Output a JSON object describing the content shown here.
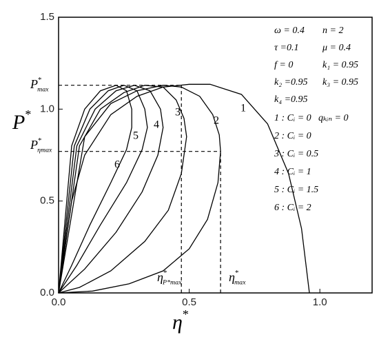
{
  "chart_data": {
    "type": "line",
    "x_label": {
      "base": "η",
      "sup": "*"
    },
    "y_label": {
      "base": "P",
      "sup": "*"
    },
    "xlim": [
      0,
      1.2
    ],
    "ylim": [
      0,
      1.5
    ],
    "xticks": [
      {
        "value": 0,
        "label": "0.0"
      },
      {
        "value": 0.5,
        "label": "0.5"
      },
      {
        "value": 1.0,
        "label": "1.0"
      }
    ],
    "yticks": [
      {
        "value": 0,
        "label": "0.0"
      },
      {
        "value": 0.5,
        "label": "0.5"
      },
      {
        "value": 1.0,
        "label": "1.0"
      },
      {
        "value": 1.5,
        "label": "1.5"
      }
    ],
    "series": [
      {
        "name": "1",
        "color": "#000000",
        "x": [
          0,
          0.05,
          0.1,
          0.2,
          0.3,
          0.4,
          0.5,
          0.58,
          0.7,
          0.8,
          0.88,
          0.93,
          0.96
        ],
        "values": [
          0,
          0.5,
          0.75,
          0.97,
          1.07,
          1.12,
          1.135,
          1.135,
          1.08,
          0.92,
          0.65,
          0.35,
          0
        ]
      },
      {
        "name": "2",
        "color": "#000000",
        "x": [
          0,
          0.1,
          0.2,
          0.3,
          0.4,
          0.47,
          0.54,
          0.59,
          0.615,
          0.62,
          0.61,
          0.57,
          0.5,
          0.4,
          0.27,
          0.13,
          0
        ],
        "values": [
          0,
          0.85,
          1.03,
          1.1,
          1.13,
          1.12,
          1.07,
          0.97,
          0.86,
          0.77,
          0.6,
          0.4,
          0.24,
          0.12,
          0.05,
          0.01,
          0
        ]
      },
      {
        "name": "3",
        "color": "#000000",
        "x": [
          0,
          0.08,
          0.16,
          0.25,
          0.33,
          0.4,
          0.45,
          0.48,
          0.49,
          0.47,
          0.42,
          0.33,
          0.2,
          0.08,
          0
        ],
        "values": [
          0,
          0.8,
          1.0,
          1.09,
          1.13,
          1.12,
          1.05,
          0.95,
          0.85,
          0.65,
          0.45,
          0.28,
          0.12,
          0.03,
          0
        ]
      },
      {
        "name": "4",
        "color": "#000000",
        "x": [
          0,
          0.07,
          0.14,
          0.22,
          0.29,
          0.35,
          0.39,
          0.4,
          0.38,
          0.32,
          0.22,
          0.1,
          0
        ],
        "values": [
          0,
          0.8,
          1.0,
          1.1,
          1.13,
          1.1,
          1.0,
          0.9,
          0.75,
          0.55,
          0.33,
          0.13,
          0
        ]
      },
      {
        "name": "5",
        "color": "#000000",
        "x": [
          0,
          0.06,
          0.12,
          0.19,
          0.25,
          0.3,
          0.33,
          0.34,
          0.32,
          0.26,
          0.16,
          0.07,
          0
        ],
        "values": [
          0,
          0.8,
          1.0,
          1.1,
          1.13,
          1.1,
          1.0,
          0.9,
          0.78,
          0.6,
          0.37,
          0.15,
          0
        ]
      },
      {
        "name": "6",
        "color": "#000000",
        "x": [
          0,
          0.05,
          0.1,
          0.16,
          0.22,
          0.26,
          0.28,
          0.28,
          0.26,
          0.2,
          0.12,
          0.05,
          0
        ],
        "values": [
          0,
          0.8,
          1.0,
          1.1,
          1.13,
          1.1,
          1.0,
          0.9,
          0.78,
          0.6,
          0.37,
          0.15,
          0
        ]
      }
    ],
    "reference_lines": [
      {
        "x": [
          0,
          0.47
        ],
        "y": [
          1.13,
          1.13
        ]
      },
      {
        "x": [
          0.47,
          0.47
        ],
        "y": [
          0,
          1.13
        ]
      },
      {
        "x": [
          0,
          0.62
        ],
        "y": [
          0.77,
          0.77
        ]
      },
      {
        "x": [
          0.62,
          0.62
        ],
        "y": [
          0,
          0.77
        ]
      }
    ],
    "annotations": [
      {
        "base": "P",
        "sup": "*",
        "sub": "max"
      },
      {
        "base": "P",
        "sup": "*",
        "sub": "ηmax"
      },
      {
        "base": "η",
        "sup": "*",
        "sub": "P*max"
      },
      {
        "base": "η",
        "sup": "*",
        "sub": "max"
      }
    ],
    "parameters": [
      "ω = 0.4",
      "n = 2",
      "τ =0.1",
      "μ = 0.4",
      "f = 0",
      "k₁ = 0.95",
      "k₂ =0.95",
      "k₃ = 0.95",
      "k₄ =0.95",
      "1 : Cᵢ = 0",
      "qₖᵢₙ = 0",
      "2 : Cᵢ = 0",
      "3 : Cᵢ = 0.5",
      "4 : Cᵢ = 1",
      "5 : Cᵢ = 1.5",
      "6 : Cᵢ = 2"
    ]
  }
}
